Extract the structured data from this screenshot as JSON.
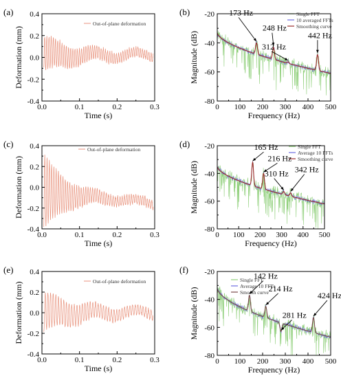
{
  "colors": {
    "deformation": "#e8927c",
    "single_fft": "#8fcf7a",
    "averaged_fft": "#6a6adf",
    "smoothing": "#9b2a2a",
    "smoothing_e": "#7a4a4a"
  },
  "chart_data": [
    {
      "id": "a",
      "panel_label": "(a)",
      "type": "line",
      "xlabel": "Time (s)",
      "ylabel": "Deformation (mm)",
      "xlim": [
        0,
        0.3
      ],
      "ylim": [
        -0.4,
        0.4
      ],
      "xticks": [
        "0.0",
        "0.1",
        "0.2",
        "0.3"
      ],
      "yticks": [
        "-0.4",
        "-0.2",
        "0.0",
        "0.2",
        "0.4"
      ],
      "series": [
        {
          "name": "Out-of-plane deformation",
          "color_key": "deformation",
          "amp": 0.14,
          "decay": 12,
          "floor": 0.035,
          "bias": 0.02,
          "freq": 173,
          "wobble": 0.03
        }
      ]
    },
    {
      "id": "b",
      "panel_label": "(b)",
      "type": "line",
      "xlabel": "Frequency (Hz)",
      "ylabel": "Magnitude (dB)",
      "xlim": [
        0,
        500
      ],
      "ylim": [
        -80,
        -20
      ],
      "xticks": [
        "0",
        "100",
        "200",
        "300",
        "400",
        "500"
      ],
      "yticks": [
        "-80",
        "-60",
        "-40",
        "-20"
      ],
      "series": [
        {
          "name": "Single FFT",
          "color_key": "single_fft"
        },
        {
          "name": "10 averaged FFTs",
          "color_key": "averaged_fft"
        },
        {
          "name": "Smoothing curve",
          "color_key": "smoothing"
        }
      ],
      "baseline": {
        "start": -33,
        "end": -61
      },
      "peaks": [
        {
          "f": 173,
          "db": -40
        },
        {
          "f": 248,
          "db": -43
        },
        {
          "f": 312,
          "db": -53
        },
        {
          "f": 442,
          "db": -48
        }
      ],
      "annotations": [
        {
          "text": "173 Hz",
          "f": 173,
          "db": -40
        },
        {
          "text": "248 Hz",
          "f": 248,
          "db": -43
        },
        {
          "text": "312 Hz",
          "f": 312,
          "db": -53
        },
        {
          "text": "442 Hz",
          "f": 442,
          "db": -48
        }
      ]
    },
    {
      "id": "c",
      "panel_label": "(c)",
      "type": "line",
      "xlabel": "Time (s)",
      "ylabel": "Deformation (mm)",
      "xlim": [
        0,
        0.3
      ],
      "ylim": [
        -0.4,
        0.4
      ],
      "xticks": [
        "0.0",
        "0.1",
        "0.2",
        "0.3"
      ],
      "yticks": [
        "-0.4",
        "-0.2",
        "0.0",
        "0.2",
        "0.4"
      ],
      "series": [
        {
          "name": "Out-of-plane deformation",
          "color_key": "deformation",
          "amp": 0.36,
          "decay": 18,
          "floor": 0.04,
          "bias": -0.05,
          "freq": 165,
          "wobble": 0.02,
          "drift": -0.25
        }
      ]
    },
    {
      "id": "d",
      "panel_label": "(d)",
      "type": "line",
      "xlabel": "Frequency (Hz)",
      "ylabel": "Magnitude (dB)",
      "xlim": [
        0,
        500
      ],
      "ylim": [
        -80,
        -20
      ],
      "xticks": [
        "0",
        "100",
        "200",
        "300",
        "400",
        "500"
      ],
      "yticks": [
        "-80",
        "-60",
        "-40",
        "-20"
      ],
      "series": [
        {
          "name": "Single FFT",
          "color_key": "single_fft"
        },
        {
          "name": "Average 10 FFTs",
          "color_key": "averaged_fft"
        },
        {
          "name": "Smoothing curve",
          "color_key": "smoothing"
        }
      ],
      "baseline": {
        "start": -35,
        "end": -62
      },
      "peaks": [
        {
          "f": 165,
          "db": -32
        },
        {
          "f": 216,
          "db": -40
        },
        {
          "f": 310,
          "db": -53
        },
        {
          "f": 342,
          "db": -54
        }
      ],
      "annotations": [
        {
          "text": "165 Hz",
          "f": 165,
          "db": -32
        },
        {
          "text": "216 Hz",
          "f": 216,
          "db": -40
        },
        {
          "text": "310 Hz",
          "f": 310,
          "db": -53
        },
        {
          "text": "342 Hz",
          "f": 342,
          "db": -54
        }
      ]
    },
    {
      "id": "e",
      "panel_label": "(e)",
      "type": "line",
      "xlabel": "Time (s)",
      "ylabel": "Deformation (mm)",
      "xlim": [
        0,
        0.3
      ],
      "ylim": [
        -0.4,
        0.4
      ],
      "xticks": [
        "0.0",
        "0.1",
        "0.2",
        "0.3"
      ],
      "yticks": [
        "-0.4",
        "-0.2",
        "0.0",
        "0.2",
        "0.4"
      ],
      "series": [
        {
          "name": "Out-of-plane deformation",
          "color_key": "deformation",
          "amp": 0.16,
          "decay": 10,
          "floor": 0.035,
          "bias": 0.0,
          "freq": 142,
          "wobble": 0.03
        }
      ]
    },
    {
      "id": "f",
      "panel_label": "(f)",
      "type": "line",
      "xlabel": "Frequency (Hz)",
      "ylabel": "Magnitude (dB)",
      "xlim": [
        0,
        500
      ],
      "ylim": [
        -80,
        -20
      ],
      "xticks": [
        "0",
        "100",
        "200",
        "300",
        "400",
        "500"
      ],
      "yticks": [
        "-80",
        "-60",
        "-40",
        "-20"
      ],
      "series": [
        {
          "name": "Single FFT",
          "color_key": "single_fft"
        },
        {
          "name": "Average 10 FFTs",
          "color_key": "averaged_fft"
        },
        {
          "name": "Smooth curve",
          "color_key": "smoothing_e"
        }
      ],
      "baseline": {
        "start": -32,
        "end": -67
      },
      "peaks": [
        {
          "f": 142,
          "db": -37
        },
        {
          "f": 214,
          "db": -45
        },
        {
          "f": 281,
          "db": -63
        },
        {
          "f": 424,
          "db": -53
        }
      ],
      "annotations": [
        {
          "text": "142 Hz",
          "f": 142,
          "db": -37
        },
        {
          "text": "214 Hz",
          "f": 214,
          "db": -45
        },
        {
          "text": "281 Hz",
          "f": 281,
          "db": -63
        },
        {
          "text": "424 Hz",
          "f": 424,
          "db": -53
        }
      ]
    }
  ]
}
